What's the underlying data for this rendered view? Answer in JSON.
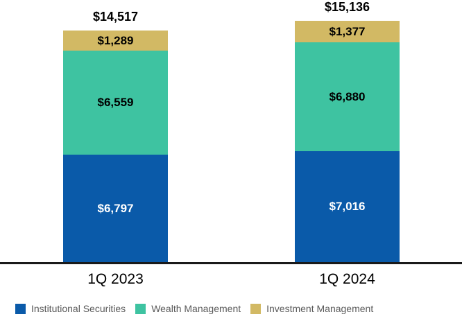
{
  "chart_data": {
    "type": "bar",
    "subtype": "stacked",
    "categories": [
      "1Q 2023",
      "1Q 2024"
    ],
    "totals": [
      14517,
      15136
    ],
    "total_labels": [
      "$14,517",
      "$15,136"
    ],
    "series": [
      {
        "name": "Institutional Securities",
        "color": "#0A5AA9",
        "values": [
          6797,
          7016
        ],
        "labels": [
          "$6,797",
          "$7,016"
        ]
      },
      {
        "name": "Wealth Management",
        "color": "#3EC3A1",
        "values": [
          6559,
          6880
        ],
        "labels": [
          "$6,559",
          "$6,880"
        ]
      },
      {
        "name": "Investment Management",
        "color": "#D2B964",
        "values": [
          1289,
          1377
        ],
        "labels": [
          "$1,289",
          "$1,377"
        ]
      }
    ],
    "legend_position": "bottom",
    "grid": false,
    "baseline_color": "#1A1A1A",
    "legend_text_color": "#595959",
    "value_label_color_on_light": "#000000",
    "value_label_color_on_dark": "#FFFFFF"
  }
}
